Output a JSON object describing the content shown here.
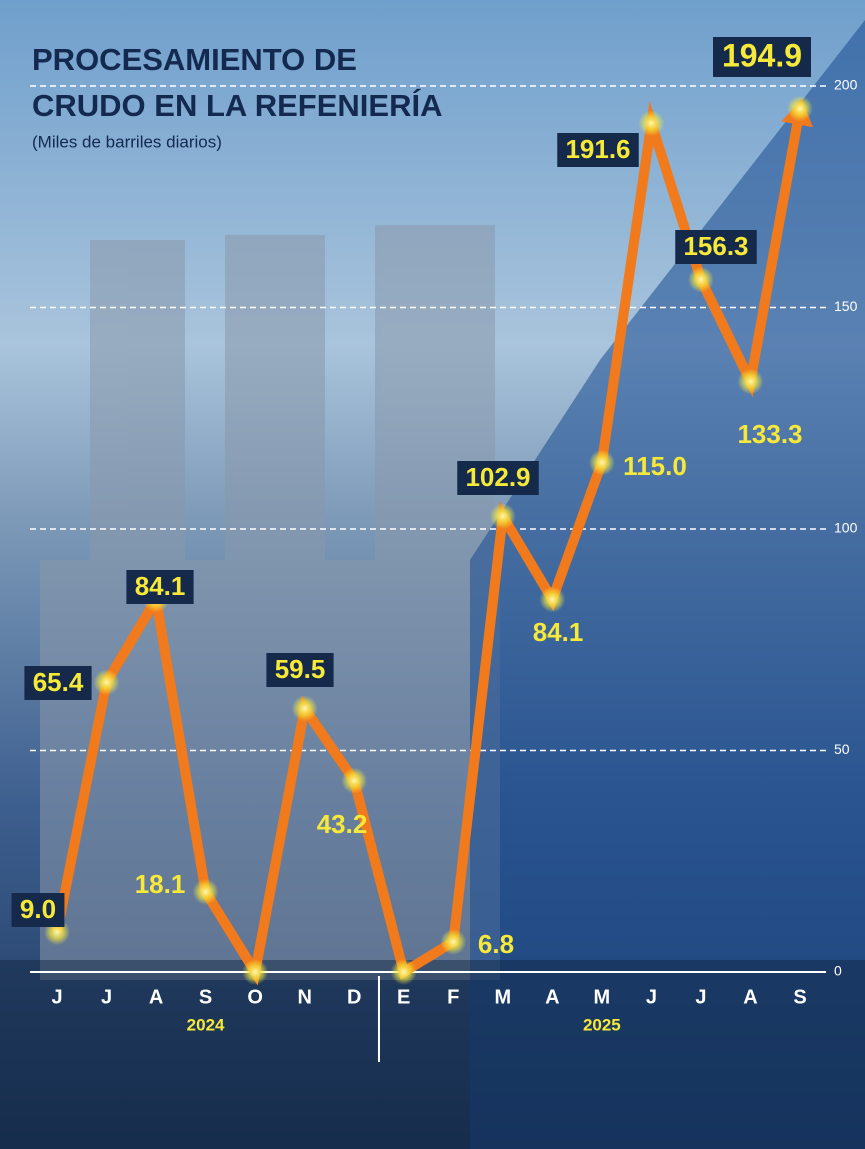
{
  "chart_data": {
    "type": "line",
    "title_lines": [
      "PROCESAMIENTO DE",
      "CRUDO EN LA REFENIERÍA"
    ],
    "subtitle": "(Miles de barriles diarios)",
    "categories": [
      "J",
      "J",
      "A",
      "S",
      "O",
      "N",
      "D",
      "E",
      "F",
      "M",
      "A",
      "M",
      "J",
      "J",
      "A",
      "S"
    ],
    "category_groups": [
      {
        "label": "2024",
        "count": 7
      },
      {
        "label": "2025",
        "count": 9
      }
    ],
    "values": [
      9.0,
      65.4,
      84.1,
      18.1,
      0,
      59.5,
      43.2,
      0,
      6.8,
      102.9,
      84.1,
      115.0,
      191.6,
      156.3,
      133.3,
      194.9
    ],
    "value_labels": [
      "9.0",
      "65.4",
      "84.1",
      "18.1",
      null,
      "59.5",
      "43.2",
      null,
      "6.8",
      "102.9",
      "84.1",
      "115.0",
      "191.6",
      "156.3",
      "133.3",
      "194.9"
    ],
    "color": "#f07a1c",
    "ylim": [
      0,
      200
    ],
    "yticks": [
      0,
      50,
      100,
      150,
      200
    ],
    "grid": true
  }
}
